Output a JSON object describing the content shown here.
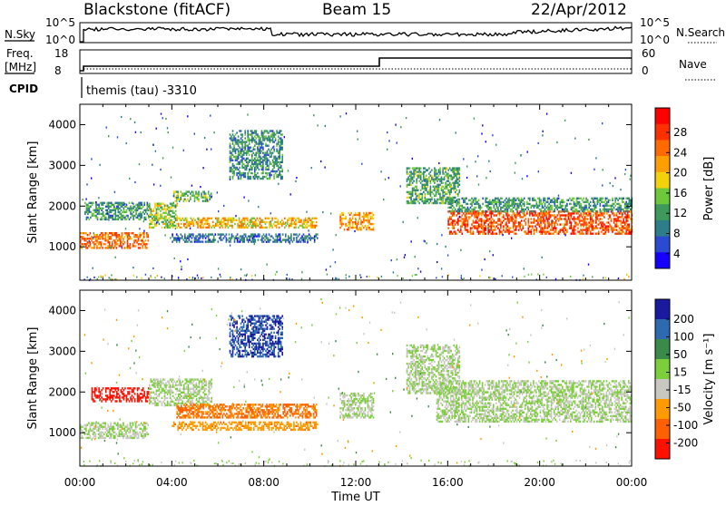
{
  "header": {
    "station": "Blackstone (fitACF)",
    "beam": "Beam 15",
    "date": "22/Apr/2012"
  },
  "status": {
    "nsky_label": "N.Sky",
    "nsearch_label": "N.Search",
    "freq_label": "Freq.",
    "freq_unit": "[MHz]",
    "nave_label": "Nave",
    "cpid_label": "CPID",
    "program": "themis (tau) -3310",
    "nsky_ticks": [
      "10^5",
      "10^0"
    ],
    "nsearch_ticks": [
      "10^5",
      "10^0"
    ],
    "freq_ticks": [
      "18",
      "8"
    ],
    "nave_ticks": [
      "60",
      "0"
    ]
  },
  "chart_data": [
    {
      "type": "heatmap",
      "title": "",
      "xlabel": "",
      "ylabel": "Slant Range [km]",
      "xlim": [
        0,
        24
      ],
      "ylim": [
        180,
        4500
      ],
      "x_ticks": [
        "00:00",
        "04:00",
        "08:00",
        "12:00",
        "16:00",
        "20:00",
        "00:00"
      ],
      "y_ticks": [
        "1000",
        "2000",
        "3000",
        "4000"
      ],
      "colorbar": {
        "label": "Power [dB]",
        "ticks": [
          "28",
          "24",
          "20",
          "16",
          "12",
          "8",
          "4"
        ],
        "range": [
          0,
          30
        ],
        "colors": [
          "#1500ff",
          "#2a4bd1",
          "#2e7d8a",
          "#3d9a5a",
          "#6dc83a",
          "#f2d20a",
          "#ff9e00",
          "#ff6a00",
          "#ff3000",
          "#ff0000"
        ]
      },
      "bands": [
        {
          "t0": 0.0,
          "t1": 3.0,
          "r0": 1000,
          "r1": 1400,
          "power": 22
        },
        {
          "t0": 0.2,
          "t1": 3.0,
          "r0": 1700,
          "r1": 2150,
          "power": 10
        },
        {
          "t0": 3.0,
          "t1": 4.2,
          "r0": 1500,
          "r1": 2100,
          "power": 14
        },
        {
          "t0": 4.0,
          "t1": 5.7,
          "r0": 2150,
          "r1": 2400,
          "power": 12
        },
        {
          "t0": 4.2,
          "t1": 10.3,
          "r0": 1500,
          "r1": 1750,
          "power": 18
        },
        {
          "t0": 4.0,
          "t1": 10.3,
          "r0": 1150,
          "r1": 1350,
          "power": 7
        },
        {
          "t0": 6.5,
          "t1": 8.8,
          "r0": 2700,
          "r1": 3900,
          "power": 9
        },
        {
          "t0": 11.3,
          "t1": 12.8,
          "r0": 1450,
          "r1": 1900,
          "power": 20
        },
        {
          "t0": 14.2,
          "t1": 16.5,
          "r0": 2100,
          "r1": 3000,
          "power": 11
        },
        {
          "t0": 16.0,
          "t1": 24.0,
          "r0": 1350,
          "r1": 1900,
          "power": 24
        },
        {
          "t0": 16.0,
          "t1": 24.0,
          "r0": 1900,
          "r1": 2250,
          "power": 10
        }
      ]
    },
    {
      "type": "heatmap",
      "title": "",
      "xlabel": "Time UT",
      "ylabel": "Slant Range [km]",
      "xlim": [
        0,
        24
      ],
      "ylim": [
        180,
        4500
      ],
      "x_ticks": [
        "00:00",
        "04:00",
        "08:00",
        "12:00",
        "16:00",
        "20:00",
        "00:00"
      ],
      "y_ticks": [
        "1000",
        "2000",
        "3000",
        "4000"
      ],
      "colorbar": {
        "label": "Velocity [m s⁻¹]",
        "ticks": [
          "200",
          "100",
          "50",
          "15",
          "-15",
          "-50",
          "-100",
          "-200"
        ],
        "colors": [
          "#1a1aa0",
          "#2d6ab0",
          "#3a8a4a",
          "#7ccf3a",
          "#c8c8c0",
          "#ff9a00",
          "#ff6000",
          "#ff1000"
        ]
      },
      "bands": [
        {
          "t0": 0.0,
          "t1": 3.0,
          "r0": 900,
          "r1": 1300,
          "velocity": 0
        },
        {
          "t0": 0.5,
          "t1": 3.0,
          "r0": 1800,
          "r1": 2150,
          "velocity": -200
        },
        {
          "t0": 3.0,
          "t1": 5.7,
          "r0": 1700,
          "r1": 2350,
          "velocity": 0
        },
        {
          "t0": 4.2,
          "t1": 10.3,
          "r0": 1400,
          "r1": 1750,
          "velocity": -80
        },
        {
          "t0": 4.0,
          "t1": 10.3,
          "r0": 1100,
          "r1": 1300,
          "velocity": -60
        },
        {
          "t0": 6.5,
          "t1": 8.8,
          "r0": 2900,
          "r1": 3900,
          "velocity": 150
        },
        {
          "t0": 11.3,
          "t1": 12.8,
          "r0": 1400,
          "r1": 2000,
          "velocity": 0
        },
        {
          "t0": 14.2,
          "t1": 16.5,
          "r0": 2000,
          "r1": 3200,
          "velocity": 0
        },
        {
          "t0": 15.5,
          "t1": 24.0,
          "r0": 1300,
          "r1": 2300,
          "velocity": 0
        }
      ]
    }
  ]
}
